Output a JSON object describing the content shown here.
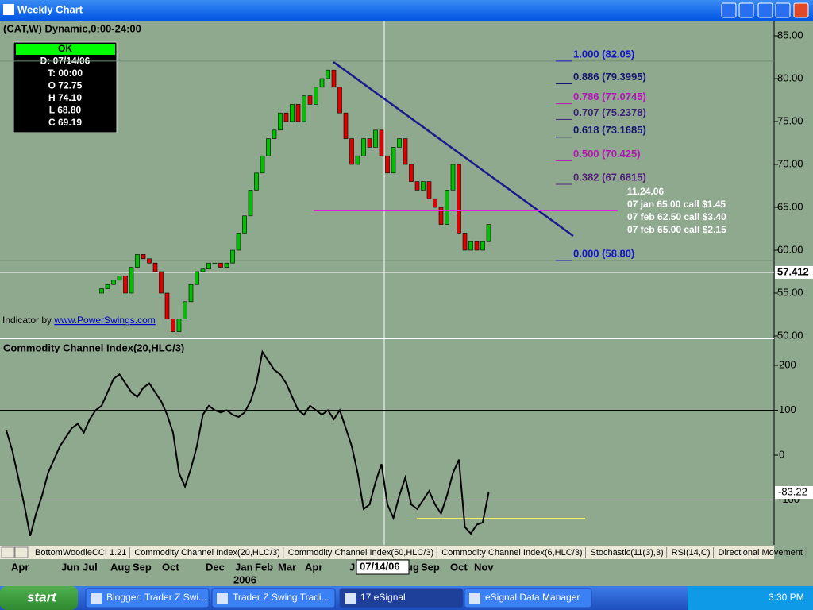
{
  "window": {
    "title": "Weekly Chart"
  },
  "chart_header": "(CAT,W) Dynamic,0:00-24:00",
  "info_box": [
    "OK",
    "D: 07/14/06",
    "T: 00:00",
    "O 72.75",
    "H 74.10",
    "L 68.80",
    "C 69.19"
  ],
  "price_panel": {
    "ylim": [
      50,
      85
    ],
    "yticks": [
      {
        "value": 85,
        "label": "85.00"
      },
      {
        "value": 80,
        "label": "80.00"
      },
      {
        "value": 75,
        "label": "75.00"
      },
      {
        "value": 70,
        "label": "70.00"
      },
      {
        "value": 65,
        "label": "65.00"
      },
      {
        "value": 60,
        "label": "60.00"
      },
      {
        "value": 55,
        "label": "55.00"
      },
      {
        "value": 50,
        "label": "50.00"
      }
    ],
    "crosshair_price": {
      "value": 57.412,
      "label": "57.412"
    },
    "candles": [
      null,
      null,
      null,
      null,
      null,
      null,
      null,
      null,
      null,
      null,
      null,
      null,
      null,
      null,
      null,
      null,
      [
        55,
        55.5
      ],
      [
        55.5,
        56
      ],
      [
        56,
        56.5
      ],
      [
        56.5,
        57
      ],
      [
        57,
        55
      ],
      [
        55,
        58
      ],
      [
        58,
        59.5
      ],
      [
        59.5,
        59
      ],
      [
        59,
        58.5
      ],
      [
        58.5,
        57.5
      ],
      [
        57.5,
        55
      ],
      [
        55,
        52
      ],
      [
        52,
        50.5
      ],
      [
        50.5,
        52
      ],
      [
        52,
        54
      ],
      [
        54,
        56
      ],
      [
        56,
        57.5
      ],
      [
        57.5,
        57.8
      ],
      [
        57.8,
        58.5
      ],
      [
        58.5,
        58.5
      ],
      [
        58.5,
        58
      ],
      [
        58,
        58.5
      ],
      [
        58.5,
        60
      ],
      [
        60,
        62
      ],
      [
        62,
        64
      ],
      [
        64,
        67
      ],
      [
        67,
        69
      ],
      [
        69,
        71
      ],
      [
        71,
        73
      ],
      [
        73,
        74
      ],
      [
        74,
        76
      ],
      [
        76,
        75
      ],
      [
        75,
        77
      ],
      [
        77,
        75
      ],
      [
        75,
        78
      ],
      [
        78,
        77
      ],
      [
        77,
        79
      ],
      [
        79,
        80
      ],
      [
        80,
        81
      ],
      [
        81,
        79
      ],
      [
        79,
        76
      ],
      [
        76,
        73
      ],
      [
        73,
        70
      ],
      [
        70,
        71
      ],
      [
        71,
        73
      ],
      [
        73,
        72
      ],
      [
        72,
        74
      ],
      [
        74,
        71
      ],
      [
        71,
        69
      ],
      [
        69,
        72
      ],
      [
        72,
        73
      ],
      [
        73,
        70
      ],
      [
        70,
        68
      ],
      [
        68,
        67
      ],
      [
        67,
        68
      ],
      [
        68,
        66
      ],
      [
        66,
        65
      ],
      [
        65,
        63
      ],
      [
        63,
        67
      ],
      [
        67,
        70
      ],
      [
        70,
        62
      ],
      [
        62,
        60
      ],
      [
        60,
        61
      ],
      [
        61,
        60
      ],
      [
        60,
        61
      ],
      [
        61,
        63
      ]
    ],
    "fib_levels": [
      {
        "label": "1.000 (82.05)",
        "value": 82.05,
        "color": "#1414c8"
      },
      {
        "label": "0.886 (79.3995)",
        "value": 79.3995,
        "color": "#14146e"
      },
      {
        "label": "0.786 (77.0745)",
        "value": 77.0745,
        "color": "#b414b4"
      },
      {
        "label": "0.707 (75.2378)",
        "value": 75.2378,
        "color": "#3c1e78"
      },
      {
        "label": "0.618 (73.1685)",
        "value": 73.1685,
        "color": "#14146e"
      },
      {
        "label": "0.500 (70.425)",
        "value": 70.425,
        "color": "#b414b4"
      },
      {
        "label": "0.382 (67.6815)",
        "value": 67.6815,
        "color": "#501e78"
      },
      {
        "label": "0.000 (58.80)",
        "value": 58.8,
        "color": "#1414c8"
      }
    ],
    "notes": [
      "11.24.06",
      "07 jan 65.00 call $1.45",
      "07 feb 62.50 call $3.40",
      "07 feb 65.00 call $2.15"
    ],
    "credit": [
      "Indicator by ",
      "www.PowerSwings.com"
    ]
  },
  "cci_panel": {
    "title": "Commodity Channel Index(20,HLC/3)",
    "ylim": [
      -200,
      250
    ],
    "yticks": [
      200,
      100,
      0,
      -100
    ],
    "last": {
      "value": -83.22,
      "label": "-83.22"
    },
    "values": [
      55,
      10,
      -50,
      -110,
      -180,
      -130,
      -90,
      -40,
      -10,
      20,
      40,
      60,
      70,
      50,
      80,
      100,
      110,
      140,
      170,
      180,
      160,
      140,
      130,
      150,
      160,
      140,
      120,
      90,
      50,
      -40,
      -70,
      -30,
      20,
      90,
      110,
      100,
      95,
      100,
      90,
      85,
      95,
      120,
      160,
      230,
      210,
      190,
      180,
      160,
      130,
      100,
      90,
      110,
      100,
      90,
      100,
      80,
      100,
      60,
      20,
      -40,
      -120,
      -110,
      -60,
      -20,
      -110,
      -140,
      -90,
      -50,
      -110,
      -120,
      -100,
      -80,
      -110,
      -130,
      -90,
      -40,
      -10,
      -160,
      -175,
      -155,
      -150,
      -83.22
    ]
  },
  "tabs": [
    "BottomWoodieCCI 1.21",
    "Commodity Channel Index(20,HLC/3)",
    "Commodity Channel Index(50,HLC/3)",
    "Commodity Channel Index(6,HLC/3)",
    "Stochastic(11(3),3)",
    "RSI(14,C)",
    "Directional Movement"
  ],
  "date_axis": {
    "labels": [
      "Apr",
      "Jun",
      "Jul",
      "Aug",
      "Sep",
      "Oct",
      "Dec",
      "Jan",
      "Feb",
      "Mar",
      "Apr",
      "J",
      "ug",
      "Sep",
      "Oct",
      "Nov"
    ],
    "year": "2006",
    "crosshair_date": "07/14/06"
  },
  "taskbar": {
    "start": "start",
    "items": [
      "Blogger: Trader Z Swi...",
      "Trader Z Swing Tradi...",
      "17 eSignal",
      "eSignal Data Manager"
    ],
    "clock": "3:30 PM"
  }
}
